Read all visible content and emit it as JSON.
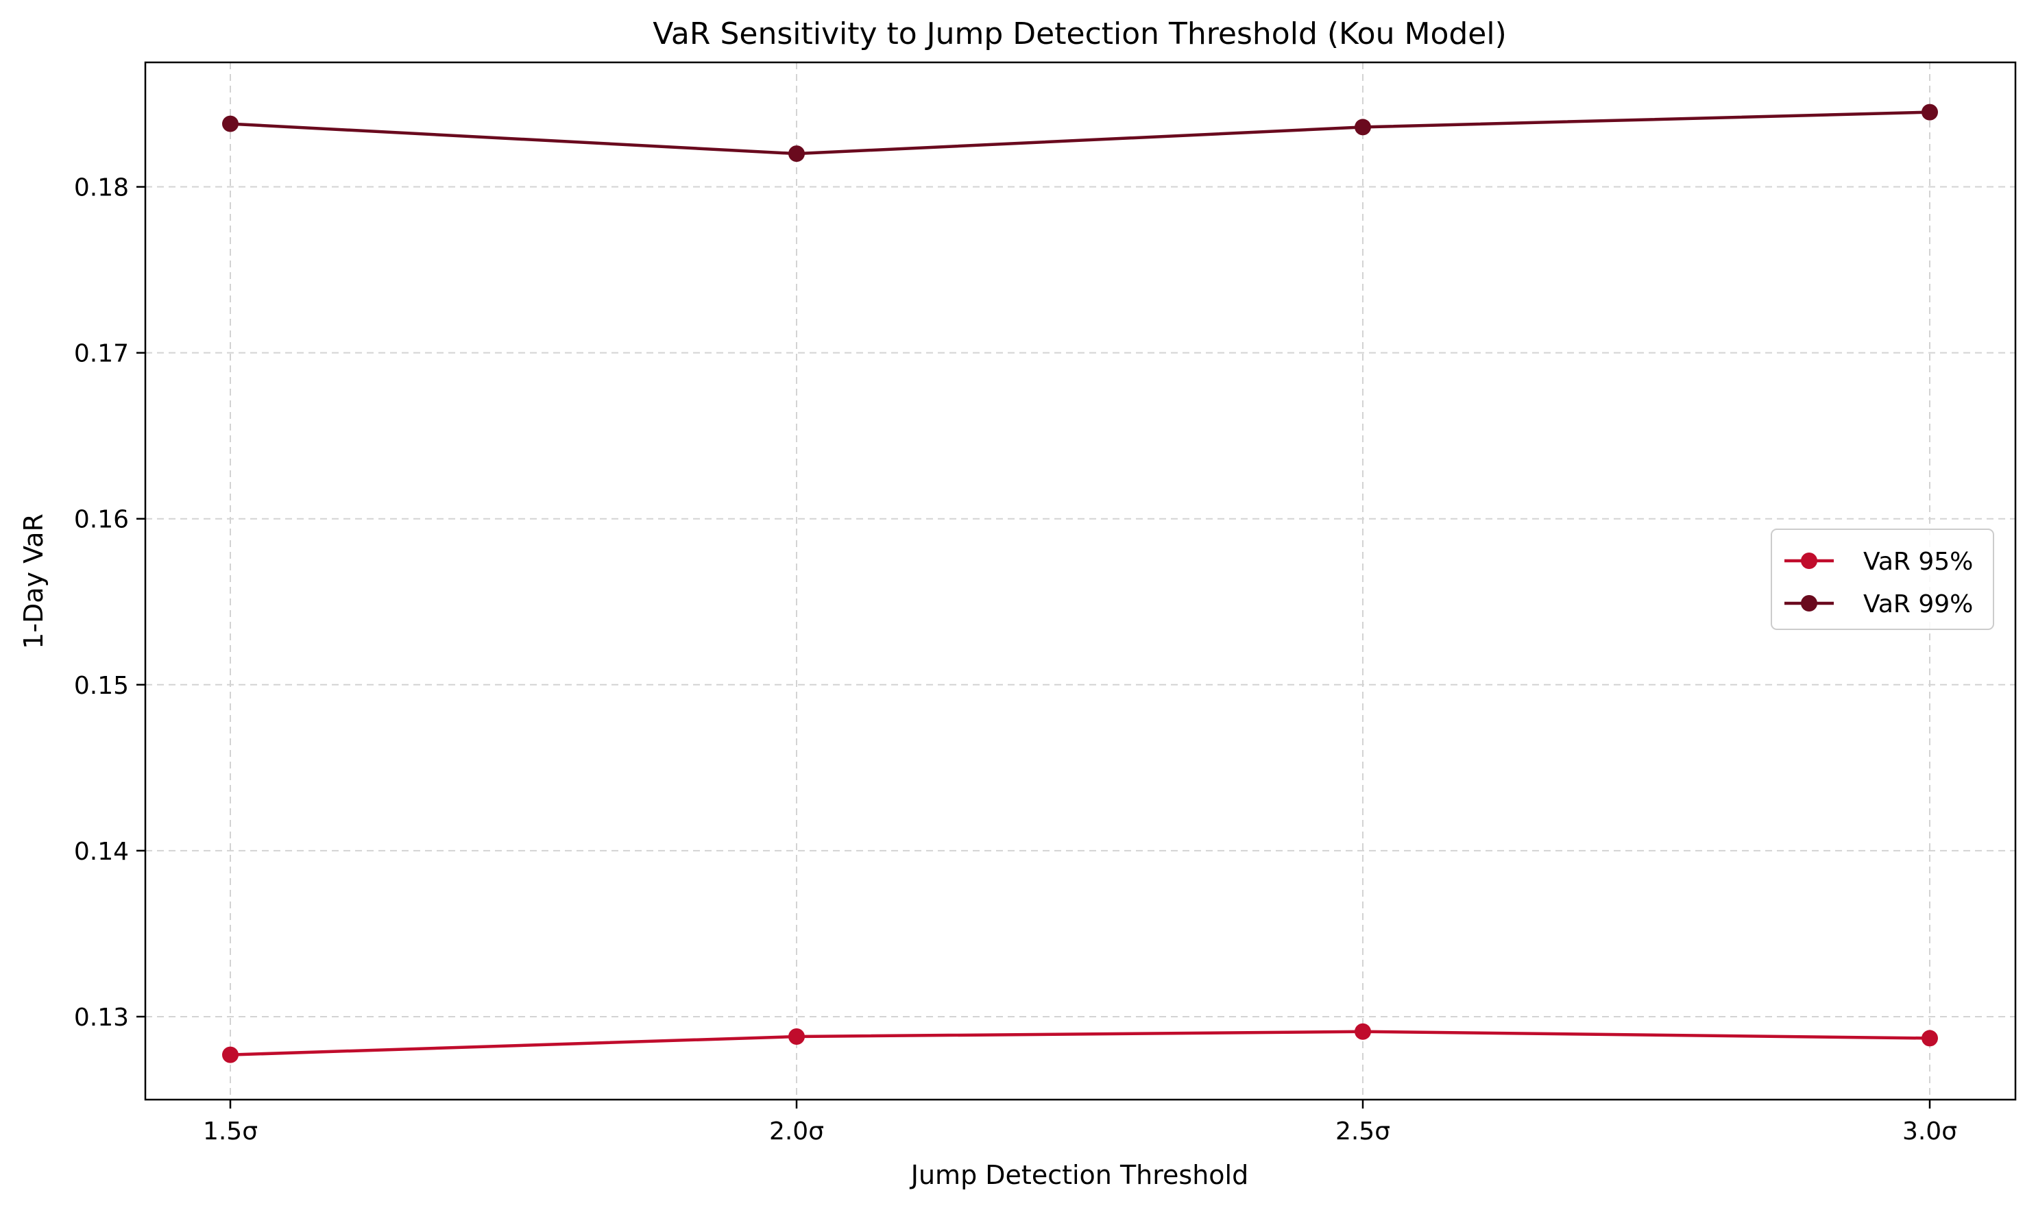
{
  "chart_data": {
    "type": "line",
    "title": "VaR Sensitivity to Jump Detection Threshold (Kou Model)",
    "xlabel": "Jump Detection Threshold",
    "ylabel": "1-Day VaR",
    "categories": [
      "1.5σ",
      "2.0σ",
      "2.5σ",
      "3.0σ"
    ],
    "ylim": [
      0.125,
      0.1875
    ],
    "yticks": [
      0.13,
      0.14,
      0.15,
      0.16,
      0.17,
      0.18
    ],
    "ytick_labels": [
      "0.13",
      "0.14",
      "0.15",
      "0.16",
      "0.17",
      "0.18"
    ],
    "grid": true,
    "grid_style": "dashed",
    "legend_position": "center-right",
    "series": [
      {
        "name": "VaR 95%",
        "color": "#c00c2c",
        "marker": "circle",
        "values": [
          0.1277,
          0.1288,
          0.1291,
          0.1287
        ]
      },
      {
        "name": "VaR 99%",
        "color": "#6a0a1e",
        "marker": "circle",
        "values": [
          0.1838,
          0.182,
          0.1836,
          0.1845
        ]
      }
    ]
  }
}
